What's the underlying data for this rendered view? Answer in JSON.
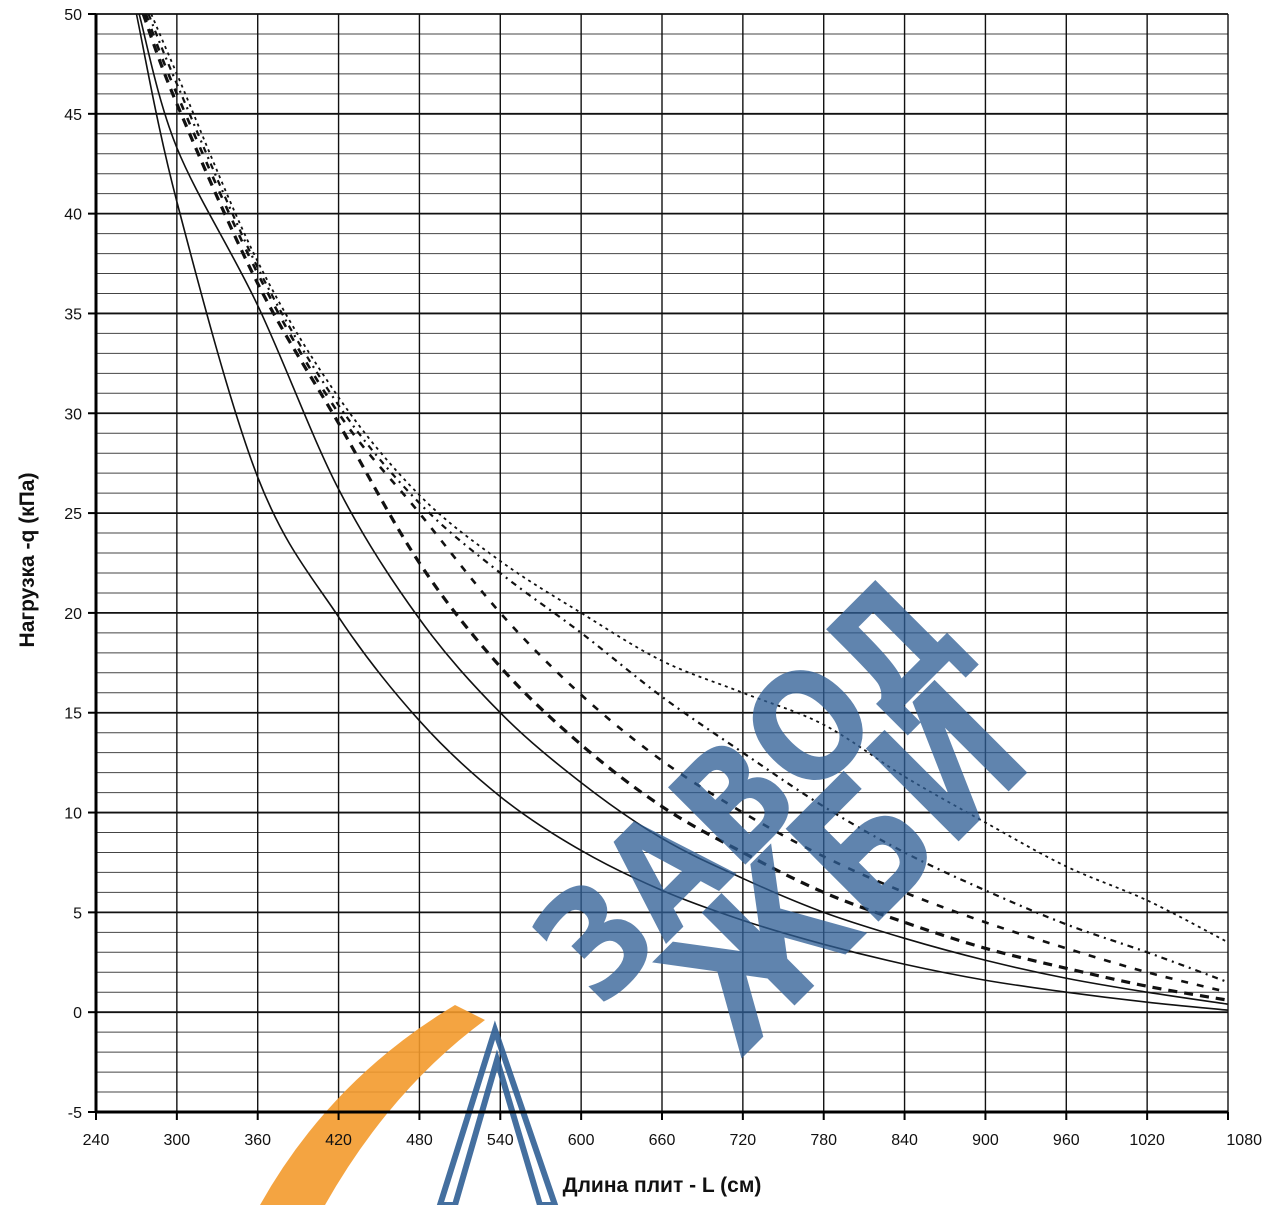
{
  "chart_data": {
    "type": "line",
    "title": "",
    "xlabel": "Длина плит - L (см)",
    "ylabel": "Нагрузка -q (кПа)",
    "xlim": [
      240,
      1080
    ],
    "ylim": [
      -5,
      50
    ],
    "x_ticks": [
      240,
      300,
      360,
      420,
      480,
      540,
      600,
      660,
      720,
      780,
      840,
      900,
      960,
      1020,
      1080
    ],
    "y_ticks": [
      -5,
      0,
      5,
      10,
      15,
      20,
      25,
      30,
      35,
      40,
      45,
      50
    ],
    "grid": true,
    "series": [
      {
        "style": "solid",
        "x": [
          270,
          300,
          360,
          420,
          480,
          540,
          600,
          660,
          720,
          780,
          840,
          900,
          960,
          1020,
          1080
        ],
        "values": [
          50,
          40.6,
          26.8,
          19.8,
          14.6,
          10.8,
          8.1,
          6.1,
          4.6,
          3.4,
          2.4,
          1.6,
          1.0,
          0.5,
          0.1
        ]
      },
      {
        "style": "solid",
        "x": [
          272,
          300,
          360,
          420,
          480,
          540,
          600,
          660,
          720,
          780,
          840,
          900,
          960,
          1020,
          1080
        ],
        "values": [
          50,
          43.3,
          35.4,
          26.2,
          19.7,
          15.0,
          11.5,
          8.7,
          6.7,
          5.0,
          3.7,
          2.6,
          1.7,
          1.0,
          0.4
        ]
      },
      {
        "style": "dash-heavy",
        "x": [
          275,
          300,
          360,
          420,
          480,
          540,
          600,
          660,
          720,
          780,
          840,
          900,
          960,
          1020,
          1080
        ],
        "values": [
          50,
          45.5,
          36.5,
          29.5,
          22.5,
          17.3,
          13.4,
          10.3,
          8.0,
          6.0,
          4.5,
          3.2,
          2.2,
          1.3,
          0.6
        ]
      },
      {
        "style": "dash",
        "x": [
          277,
          300,
          360,
          420,
          480,
          540,
          600,
          660,
          720,
          780,
          840,
          900,
          960,
          1020,
          1080
        ],
        "values": [
          50,
          46.0,
          37.0,
          30.0,
          25.0,
          20.0,
          15.9,
          12.6,
          10.0,
          7.8,
          6.0,
          4.5,
          3.2,
          2.0,
          1.0
        ]
      },
      {
        "style": "dash-dot",
        "x": [
          279,
          300,
          360,
          420,
          480,
          540,
          600,
          660,
          720,
          780,
          840,
          900,
          960,
          1020,
          1080
        ],
        "values": [
          50,
          46.5,
          37.3,
          30.4,
          25.5,
          22.0,
          19.0,
          15.8,
          13.0,
          10.3,
          8.0,
          6.1,
          4.4,
          3.0,
          1.5
        ]
      },
      {
        "style": "dash-light",
        "x": [
          281,
          300,
          360,
          420,
          480,
          540,
          600,
          660,
          720,
          780,
          840,
          900,
          960,
          1020,
          1080
        ],
        "values": [
          50,
          47.0,
          37.6,
          30.8,
          25.9,
          22.6,
          20.0,
          17.6,
          16.0,
          14.4,
          11.8,
          9.5,
          7.3,
          5.6,
          3.5
        ]
      }
    ]
  },
  "watermark": {
    "line1": "ЗАВОД",
    "line2": "ЖБИ",
    "color_blue": "#2f5f95",
    "color_orange": "#f39a2c"
  }
}
